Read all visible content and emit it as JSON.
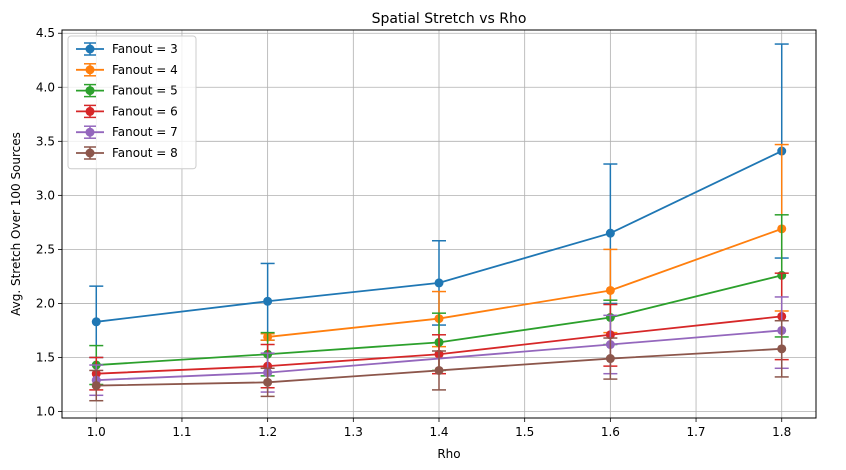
{
  "chart_data": {
    "type": "line",
    "title": "Spatial Stretch vs Rho",
    "xlabel": "Rho",
    "ylabel": "Avg. Stretch Over 100 Sources",
    "xlim": [
      0.96,
      1.84
    ],
    "ylim": [
      0.94,
      4.53
    ],
    "xticks": [
      "1.0",
      "1.1",
      "1.2",
      "1.3",
      "1.4",
      "1.5",
      "1.6",
      "1.7",
      "1.8"
    ],
    "yticks": [
      "1.0",
      "1.5",
      "2.0",
      "2.5",
      "3.0",
      "3.5",
      "4.0",
      "4.5"
    ],
    "grid": true,
    "legend_position": "upper left",
    "x": [
      1.0,
      1.2,
      1.4,
      1.6,
      1.8
    ],
    "series": [
      {
        "name": "Fanout = 3",
        "color": "#1f77b4",
        "values": [
          1.83,
          2.02,
          2.19,
          2.65,
          3.41
        ],
        "err_low": [
          1.5,
          1.66,
          1.8,
          2.0,
          2.42
        ],
        "err_high": [
          2.16,
          2.37,
          2.58,
          3.29,
          4.4
        ]
      },
      {
        "name": "Fanout = 4",
        "color": "#ff7f0e",
        "values": [
          null,
          1.69,
          1.86,
          2.12,
          2.69
        ],
        "err_low": [
          null,
          1.66,
          1.6,
          1.73,
          1.93
        ],
        "err_high": [
          null,
          1.72,
          2.11,
          2.5,
          3.47
        ]
      },
      {
        "name": "Fanout = 5",
        "color": "#2ca02c",
        "values": [
          1.43,
          1.53,
          1.64,
          1.87,
          2.26
        ],
        "err_low": [
          1.25,
          1.33,
          1.38,
          1.62,
          1.69
        ],
        "err_high": [
          1.61,
          1.73,
          1.91,
          2.03,
          2.82
        ]
      },
      {
        "name": "Fanout = 6",
        "color": "#d62728",
        "values": [
          1.35,
          1.42,
          1.53,
          1.71,
          1.88
        ],
        "err_low": [
          1.2,
          1.22,
          1.35,
          1.42,
          1.48
        ],
        "err_high": [
          1.5,
          1.62,
          1.71,
          1.99,
          2.28
        ]
      },
      {
        "name": "Fanout = 7",
        "color": "#9467bd",
        "values": [
          1.29,
          1.36,
          null,
          1.62,
          1.75
        ],
        "err_low": [
          1.15,
          1.18,
          null,
          1.35,
          1.4
        ],
        "err_high": [
          1.43,
          1.54,
          null,
          1.89,
          2.06
        ]
      },
      {
        "name": "Fanout = 8",
        "color": "#8c564b",
        "values": [
          1.24,
          1.27,
          1.38,
          1.49,
          1.58
        ],
        "err_low": [
          1.1,
          1.14,
          1.2,
          1.3,
          1.32
        ],
        "err_high": [
          1.38,
          1.4,
          1.56,
          1.68,
          1.84
        ]
      }
    ]
  }
}
